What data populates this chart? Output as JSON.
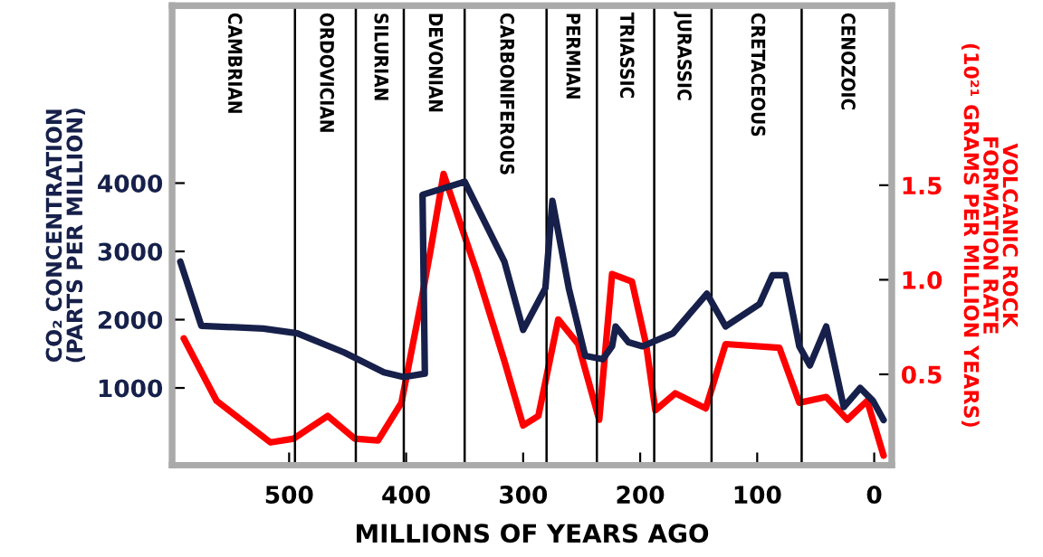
{
  "chart_data": {
    "type": "line",
    "xlabel": "MILLIONS OF YEARS AGO",
    "ylabel": "CO₂ CONCENTRATION\n(PARTS PER MILLION)",
    "y2label": "VOLCANIC ROCK\nFORMATION RATE\n(10²¹ GRAMS PER MILLION YEARS)",
    "xlim": [
      600,
      -15
    ],
    "xticks": [
      500,
      400,
      300,
      200,
      100,
      0
    ],
    "ylim": [
      -130,
      6600
    ],
    "yticks": [
      1000,
      2000,
      3000,
      4000
    ],
    "y2lim": [
      0.02,
      2.45
    ],
    "y2ticks": [
      0.5,
      {
        "value": 1.0,
        "label": "1.0"
      },
      1.5
    ],
    "marker": "none",
    "line_style": "solid",
    "series": [
      {
        "color": "#16204a",
        "x": [
          593,
          575,
          522,
          493,
          453,
          419,
          402,
          384,
          386,
          350,
          316,
          300,
          281,
          275,
          261,
          247,
          232,
          224,
          221,
          210,
          198,
          172,
          143,
          127,
          98,
          87,
          76,
          64,
          55,
          41,
          26,
          12,
          1,
          -8
        ],
        "values": [
          2850,
          1910,
          1870,
          1800,
          1520,
          1230,
          1160,
          1210,
          3830,
          4020,
          2850,
          1850,
          2460,
          3740,
          2460,
          1470,
          1420,
          1610,
          1900,
          1670,
          1610,
          1800,
          2380,
          1900,
          2230,
          2650,
          2650,
          1610,
          1330,
          1900,
          720,
          1000,
          810,
          530
        ]
      },
      {
        "color": "#ff0000",
        "axis": "y2",
        "x": [
          590,
          562,
          516,
          496,
          467,
          444,
          424,
          404,
          387,
          379,
          368,
          339,
          316,
          300,
          287,
          270,
          253,
          235,
          224,
          207,
          195,
          187,
          170,
          144,
          127,
          81,
          64,
          41,
          23,
          6,
          -8
        ],
        "values": [
          0.69,
          0.36,
          0.14,
          0.16,
          0.28,
          0.16,
          0.15,
          0.35,
          0.89,
          1.16,
          1.56,
          1.03,
          0.57,
          0.23,
          0.28,
          0.79,
          0.66,
          0.26,
          1.03,
          0.99,
          0.66,
          0.31,
          0.4,
          0.32,
          0.66,
          0.64,
          0.35,
          0.38,
          0.26,
          0.36,
          0.07
        ]
      }
    ],
    "ref_lines": [
      {
        "axis": "x",
        "value": 495,
        "color": "#000000"
      },
      {
        "axis": "x",
        "value": 443,
        "color": "#000000"
      },
      {
        "axis": "x",
        "value": 402,
        "color": "#000000"
      },
      {
        "axis": "x",
        "value": 350,
        "color": "#000000"
      },
      {
        "axis": "x",
        "value": 280,
        "color": "#000000"
      },
      {
        "axis": "x",
        "value": 237,
        "color": "#000000"
      },
      {
        "axis": "x",
        "value": 188,
        "color": "#000000"
      },
      {
        "axis": "x",
        "value": 139,
        "color": "#000000"
      },
      {
        "axis": "x",
        "value": 62,
        "color": "#000000"
      }
    ],
    "annotations": [
      "CAMBRIAN",
      "ORDOVICIAN",
      "SILURIAN",
      "DEVONIAN",
      "CARBONIFEROUS",
      "PERMIAN",
      "TRIASSIC",
      "JURASSIC",
      "CRETACEOUS",
      "CENOZOIC"
    ]
  }
}
